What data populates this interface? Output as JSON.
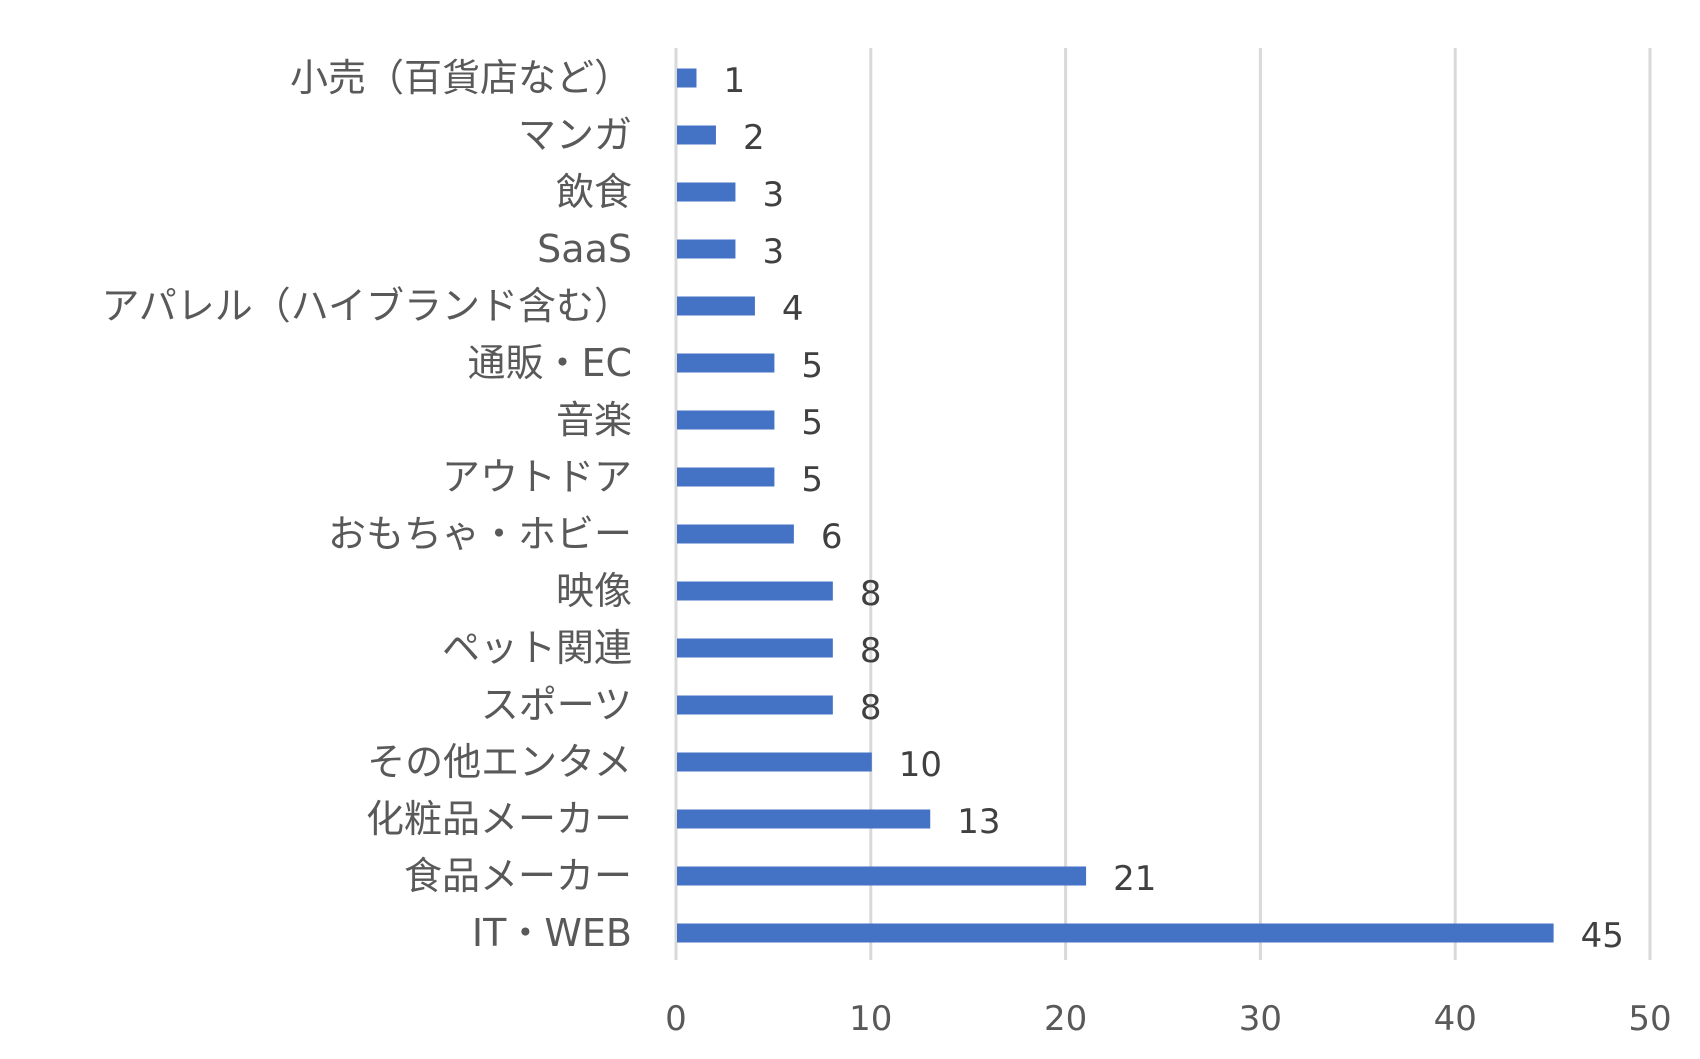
{
  "chart_data": {
    "type": "bar",
    "orientation": "horizontal",
    "title": "",
    "xlabel": "",
    "ylabel": "",
    "categories": [
      "小売（百貨店など）",
      "マンガ",
      "飲食",
      "SaaS",
      "アパレル（ハイブランド含む）",
      "通販・EC",
      "音楽",
      "アウトドア",
      "おもちゃ・ホビー",
      "映像",
      "ペット関連",
      "スポーツ",
      "その他エンタメ",
      "化粧品メーカー",
      "食品メーカー",
      "IT・WEB"
    ],
    "values": [
      1,
      2,
      3,
      3,
      4,
      5,
      5,
      5,
      6,
      8,
      8,
      8,
      10,
      13,
      21,
      45
    ],
    "xlim": [
      0,
      50
    ],
    "xticks": [
      0,
      10,
      20,
      30,
      40,
      50
    ],
    "grid": true,
    "legend": "none",
    "bar_color": "#4472c4"
  }
}
